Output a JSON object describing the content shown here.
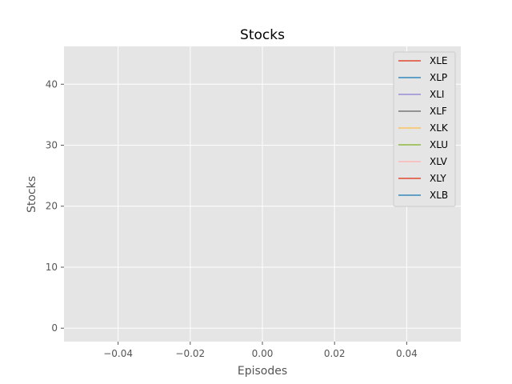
{
  "chart_data": {
    "type": "line",
    "title": "Stocks",
    "xlabel": "Episodes",
    "ylabel": "Stocks",
    "xlim": [
      -0.055,
      0.055
    ],
    "ylim": [
      -2.2,
      46.2
    ],
    "xticks": [
      -0.04,
      -0.02,
      0.0,
      0.02,
      0.04
    ],
    "xtick_labels": [
      "−0.04",
      "−0.02",
      "0.00",
      "0.02",
      "0.04"
    ],
    "yticks": [
      0,
      10,
      20,
      30,
      40
    ],
    "ytick_labels": [
      "0",
      "10",
      "20",
      "30",
      "40"
    ],
    "grid": true,
    "legend_position": "top-right",
    "series": [
      {
        "name": "XLE",
        "color": "#E24A33",
        "x": [],
        "y": []
      },
      {
        "name": "XLP",
        "color": "#348ABD",
        "x": [],
        "y": []
      },
      {
        "name": "XLI",
        "color": "#988ED5",
        "x": [],
        "y": []
      },
      {
        "name": "XLF",
        "color": "#777777",
        "x": [],
        "y": []
      },
      {
        "name": "XLK",
        "color": "#FBC15E",
        "x": [],
        "y": []
      },
      {
        "name": "XLU",
        "color": "#8EBA42",
        "x": [],
        "y": []
      },
      {
        "name": "XLV",
        "color": "#FFB5B8",
        "x": [],
        "y": []
      },
      {
        "name": "XLY",
        "color": "#E24A33",
        "x": [],
        "y": []
      },
      {
        "name": "XLB",
        "color": "#348ABD",
        "x": [],
        "y": []
      }
    ]
  }
}
